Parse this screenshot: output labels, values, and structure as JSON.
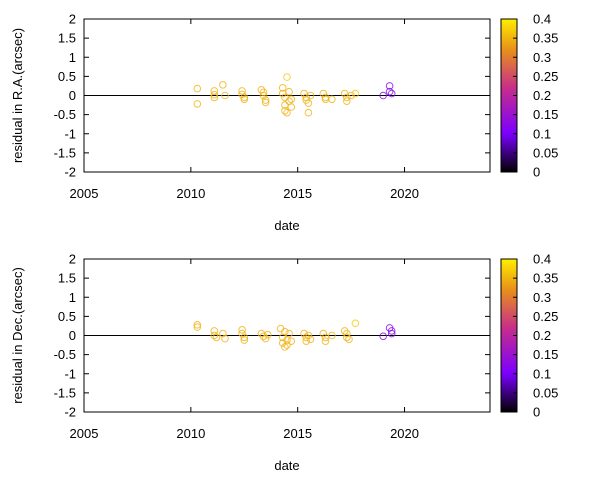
{
  "chart_data": [
    {
      "type": "scatter",
      "title": "",
      "xlabel": "date",
      "ylabel": "residual in R.A.(arcsec)",
      "xlim": [
        2005,
        2024
      ],
      "ylim": [
        -2,
        2
      ],
      "x_ticks": [
        "2005",
        "2010",
        "2015",
        "2020"
      ],
      "y_ticks": [
        "2",
        "1.5",
        "1",
        "0.5",
        "0",
        "-0.5",
        "-1",
        "-1.5",
        "-2"
      ],
      "colorbar": {
        "range": [
          0,
          0.4
        ],
        "ticks": [
          "0.4",
          "0.35",
          "0.3",
          "0.25",
          "0.2",
          "0.15",
          "0.1",
          "0.05",
          "0"
        ],
        "colors": [
          "#000000",
          "#7a00ff",
          "#c72e8a",
          "#e8901a",
          "#ffee00"
        ]
      },
      "points": [
        {
          "x": 2010.3,
          "y": 0.18,
          "c": 0.35
        },
        {
          "x": 2010.3,
          "y": -0.22,
          "c": 0.35
        },
        {
          "x": 2011.1,
          "y": 0.12,
          "c": 0.35
        },
        {
          "x": 2011.1,
          "y": 0.02,
          "c": 0.35
        },
        {
          "x": 2011.1,
          "y": -0.05,
          "c": 0.35
        },
        {
          "x": 2011.5,
          "y": 0.28,
          "c": 0.35
        },
        {
          "x": 2011.6,
          "y": 0.0,
          "c": 0.35
        },
        {
          "x": 2012.4,
          "y": 0.12,
          "c": 0.35
        },
        {
          "x": 2012.4,
          "y": 0.03,
          "c": 0.35
        },
        {
          "x": 2012.5,
          "y": -0.05,
          "c": 0.35
        },
        {
          "x": 2012.5,
          "y": -0.1,
          "c": 0.35
        },
        {
          "x": 2013.3,
          "y": 0.15,
          "c": 0.35
        },
        {
          "x": 2013.4,
          "y": 0.08,
          "c": 0.35
        },
        {
          "x": 2013.4,
          "y": 0.0,
          "c": 0.35
        },
        {
          "x": 2013.5,
          "y": -0.12,
          "c": 0.35
        },
        {
          "x": 2013.5,
          "y": -0.18,
          "c": 0.35
        },
        {
          "x": 2014.3,
          "y": 0.2,
          "c": 0.35
        },
        {
          "x": 2014.3,
          "y": 0.05,
          "c": 0.35
        },
        {
          "x": 2014.4,
          "y": -0.05,
          "c": 0.35
        },
        {
          "x": 2014.4,
          "y": -0.25,
          "c": 0.35
        },
        {
          "x": 2014.4,
          "y": -0.4,
          "c": 0.35
        },
        {
          "x": 2014.5,
          "y": 0.48,
          "c": 0.37
        },
        {
          "x": 2014.5,
          "y": -0.45,
          "c": 0.35
        },
        {
          "x": 2014.6,
          "y": 0.1,
          "c": 0.35
        },
        {
          "x": 2014.6,
          "y": -0.15,
          "c": 0.35
        },
        {
          "x": 2014.7,
          "y": -0.3,
          "c": 0.35
        },
        {
          "x": 2014.7,
          "y": -0.1,
          "c": 0.35
        },
        {
          "x": 2015.3,
          "y": 0.05,
          "c": 0.35
        },
        {
          "x": 2015.4,
          "y": -0.05,
          "c": 0.35
        },
        {
          "x": 2015.4,
          "y": -0.12,
          "c": 0.35
        },
        {
          "x": 2015.5,
          "y": -0.2,
          "c": 0.35
        },
        {
          "x": 2015.5,
          "y": -0.45,
          "c": 0.35
        },
        {
          "x": 2015.6,
          "y": 0.0,
          "c": 0.35
        },
        {
          "x": 2016.2,
          "y": 0.05,
          "c": 0.35
        },
        {
          "x": 2016.3,
          "y": -0.05,
          "c": 0.35
        },
        {
          "x": 2016.3,
          "y": -0.1,
          "c": 0.35
        },
        {
          "x": 2016.6,
          "y": -0.1,
          "c": 0.35
        },
        {
          "x": 2017.2,
          "y": 0.05,
          "c": 0.35
        },
        {
          "x": 2017.3,
          "y": -0.05,
          "c": 0.35
        },
        {
          "x": 2017.3,
          "y": -0.15,
          "c": 0.35
        },
        {
          "x": 2017.5,
          "y": 0.0,
          "c": 0.35
        },
        {
          "x": 2017.7,
          "y": 0.05,
          "c": 0.37
        },
        {
          "x": 2019.0,
          "y": 0.0,
          "c": 0.12
        },
        {
          "x": 2019.3,
          "y": 0.25,
          "c": 0.12
        },
        {
          "x": 2019.3,
          "y": 0.1,
          "c": 0.12
        },
        {
          "x": 2019.4,
          "y": 0.05,
          "c": 0.12
        }
      ]
    },
    {
      "type": "scatter",
      "title": "",
      "xlabel": "date",
      "ylabel": "residual in Dec.(arcsec)",
      "xlim": [
        2005,
        2024
      ],
      "ylim": [
        -2,
        2
      ],
      "x_ticks": [
        "2005",
        "2010",
        "2015",
        "2020"
      ],
      "y_ticks": [
        "2",
        "1.5",
        "1",
        "0.5",
        "0",
        "-0.5",
        "-1",
        "-1.5",
        "-2"
      ],
      "colorbar": {
        "range": [
          0,
          0.4
        ],
        "ticks": [
          "0.4",
          "0.35",
          "0.3",
          "0.25",
          "0.2",
          "0.15",
          "0.1",
          "0.05",
          "0"
        ],
        "colors": [
          "#000000",
          "#7a00ff",
          "#c72e8a",
          "#e8901a",
          "#ffee00"
        ]
      },
      "points": [
        {
          "x": 2010.3,
          "y": 0.28,
          "c": 0.35
        },
        {
          "x": 2010.3,
          "y": 0.22,
          "c": 0.35
        },
        {
          "x": 2011.1,
          "y": 0.12,
          "c": 0.35
        },
        {
          "x": 2011.1,
          "y": 0.0,
          "c": 0.35
        },
        {
          "x": 2011.2,
          "y": -0.05,
          "c": 0.35
        },
        {
          "x": 2011.5,
          "y": 0.05,
          "c": 0.35
        },
        {
          "x": 2011.6,
          "y": -0.08,
          "c": 0.35
        },
        {
          "x": 2012.4,
          "y": 0.15,
          "c": 0.35
        },
        {
          "x": 2012.4,
          "y": 0.05,
          "c": 0.35
        },
        {
          "x": 2012.5,
          "y": -0.05,
          "c": 0.35
        },
        {
          "x": 2012.5,
          "y": -0.12,
          "c": 0.35
        },
        {
          "x": 2013.3,
          "y": 0.05,
          "c": 0.35
        },
        {
          "x": 2013.4,
          "y": -0.02,
          "c": 0.35
        },
        {
          "x": 2013.5,
          "y": -0.08,
          "c": 0.35
        },
        {
          "x": 2013.6,
          "y": 0.02,
          "c": 0.35
        },
        {
          "x": 2014.2,
          "y": 0.18,
          "c": 0.35
        },
        {
          "x": 2014.3,
          "y": -0.05,
          "c": 0.35
        },
        {
          "x": 2014.3,
          "y": -0.2,
          "c": 0.35
        },
        {
          "x": 2014.4,
          "y": -0.3,
          "c": 0.35
        },
        {
          "x": 2014.4,
          "y": 0.1,
          "c": 0.35
        },
        {
          "x": 2014.5,
          "y": -0.12,
          "c": 0.35
        },
        {
          "x": 2014.5,
          "y": -0.25,
          "c": 0.35
        },
        {
          "x": 2014.6,
          "y": 0.05,
          "c": 0.35
        },
        {
          "x": 2014.7,
          "y": -0.15,
          "c": 0.35
        },
        {
          "x": 2015.3,
          "y": 0.05,
          "c": 0.35
        },
        {
          "x": 2015.4,
          "y": -0.05,
          "c": 0.35
        },
        {
          "x": 2015.4,
          "y": -0.15,
          "c": 0.35
        },
        {
          "x": 2015.5,
          "y": 0.0,
          "c": 0.35
        },
        {
          "x": 2015.6,
          "y": -0.1,
          "c": 0.35
        },
        {
          "x": 2016.2,
          "y": 0.05,
          "c": 0.35
        },
        {
          "x": 2016.3,
          "y": -0.05,
          "c": 0.35
        },
        {
          "x": 2016.3,
          "y": -0.15,
          "c": 0.35
        },
        {
          "x": 2016.6,
          "y": 0.0,
          "c": 0.35
        },
        {
          "x": 2017.2,
          "y": 0.12,
          "c": 0.35
        },
        {
          "x": 2017.3,
          "y": 0.05,
          "c": 0.35
        },
        {
          "x": 2017.3,
          "y": -0.05,
          "c": 0.35
        },
        {
          "x": 2017.4,
          "y": -0.1,
          "c": 0.35
        },
        {
          "x": 2017.7,
          "y": 0.32,
          "c": 0.37
        },
        {
          "x": 2019.0,
          "y": -0.02,
          "c": 0.12
        },
        {
          "x": 2019.3,
          "y": 0.2,
          "c": 0.12
        },
        {
          "x": 2019.4,
          "y": 0.12,
          "c": 0.12
        },
        {
          "x": 2019.4,
          "y": 0.05,
          "c": 0.12
        }
      ]
    }
  ]
}
